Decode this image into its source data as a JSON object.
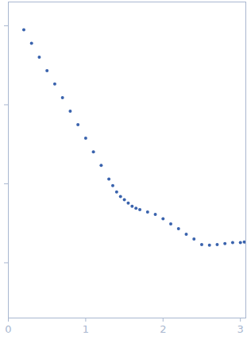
{
  "chart_data": {
    "type": "scatter",
    "x": [
      0.2,
      0.3,
      0.4,
      0.5,
      0.6,
      0.7,
      0.8,
      0.9,
      1.0,
      1.1,
      1.2,
      1.3,
      1.35,
      1.4,
      1.45,
      1.5,
      1.55,
      1.6,
      1.65,
      1.7,
      1.8,
      1.9,
      2.0,
      2.1,
      2.2,
      2.3,
      2.4,
      2.5,
      2.6,
      2.7,
      2.8,
      2.9,
      3.0,
      3.05
    ],
    "values": [
      0.89,
      0.6,
      0.4,
      0.27,
      0.183,
      0.123,
      0.083,
      0.056,
      0.0377,
      0.0254,
      0.0171,
      0.0115,
      0.0095,
      0.0079,
      0.0069,
      0.0063,
      0.0057,
      0.0052,
      0.0049,
      0.0047,
      0.0044,
      0.0041,
      0.0036,
      0.0031,
      0.0027,
      0.0023,
      0.002,
      0.0017,
      0.00167,
      0.0017,
      0.00175,
      0.0018,
      0.0018,
      0.00183
    ],
    "color": "#3a63ad",
    "marker": "circle",
    "log": "y",
    "grid": false,
    "tick_labels": "x",
    "xlim": [
      0,
      3.07
    ],
    "xticks": [
      0,
      1,
      2,
      3
    ],
    "ylim": [
      0.0002,
      2
    ],
    "yticks": [
      0.001,
      0.01,
      0.1,
      1
    ]
  }
}
